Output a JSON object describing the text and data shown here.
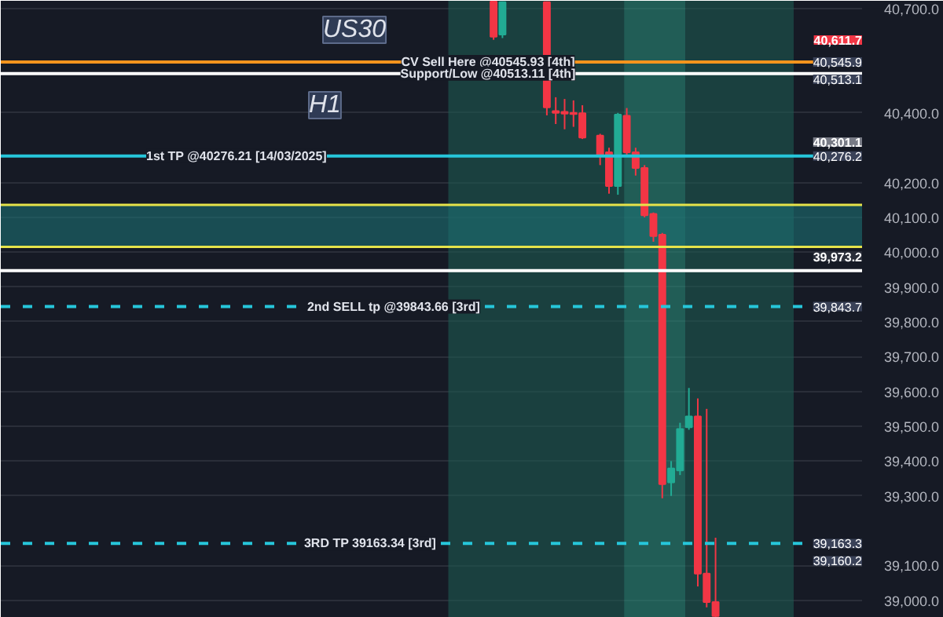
{
  "chart_data": {
    "type": "candlestick",
    "categories": [
      null,
      null,
      null,
      null,
      null,
      null,
      null,
      null,
      null,
      null,
      null,
      null,
      null,
      null,
      null,
      null,
      null,
      null,
      null,
      null,
      null,
      null,
      null,
      null,
      null,
      null,
      null,
      null,
      null,
      null,
      null,
      null,
      null,
      null,
      null,
      null,
      null,
      null,
      null,
      null,
      null,
      null,
      null,
      null,
      null,
      null,
      null,
      null,
      null,
      null,
      null,
      null,
      null,
      null,
      null,
      null,
      null,
      null,
      null,
      null,
      null,
      null,
      null,
      null,
      null,
      null,
      null,
      null,
      null,
      null,
      null,
      null,
      null,
      null,
      null,
      null,
      null,
      null,
      null,
      null,
      null,
      null,
      null,
      null,
      null,
      null,
      null,
      null,
      null,
      null,
      null,
      null,
      null,
      null,
      null,
      null,
      null
    ],
    "ohlc": [
      null,
      null,
      null,
      null,
      null,
      null,
      null,
      null,
      null,
      null,
      null,
      null,
      null,
      null,
      null,
      null,
      null,
      null,
      null,
      null,
      null,
      null,
      null,
      null,
      null,
      null,
      null,
      null,
      null,
      null,
      null,
      null,
      null,
      null,
      null,
      null,
      null,
      null,
      null,
      null,
      null,
      null,
      null,
      null,
      null,
      null,
      null,
      null,
      null,
      null,
      null,
      null,
      null,
      null,
      null,
      [
        40720,
        40722,
        40610,
        40619
      ],
      [
        40625,
        40720,
        40615,
        40718
      ],
      null,
      null,
      null,
      null,
      [
        40718,
        40720,
        40393,
        40416
      ],
      [
        40405,
        40445,
        40368,
        40400
      ],
      [
        40403,
        40440,
        40353,
        40398
      ],
      [
        40400,
        40436,
        40360,
        40397
      ],
      [
        40399,
        40422,
        40325,
        40329
      ],
      null,
      [
        40335,
        40340,
        40250,
        40276
      ],
      [
        40287,
        40300,
        40168,
        40190
      ],
      [
        40190,
        40400,
        40165,
        40395
      ],
      [
        40392,
        40414,
        40280,
        40287
      ],
      [
        40287,
        40300,
        40220,
        40242
      ],
      [
        40242,
        40250,
        40100,
        40106
      ],
      [
        40110,
        40114,
        40030,
        40046
      ],
      [
        40050,
        40055,
        39293,
        39334
      ],
      [
        39339,
        39400,
        39300,
        39379
      ],
      [
        39373,
        39510,
        39360,
        39492
      ],
      [
        39497,
        39610,
        39490,
        39528
      ],
      [
        39528,
        39580,
        39040,
        39077
      ],
      [
        39077,
        39550,
        38980,
        38995
      ],
      [
        38995,
        39180,
        38952,
        38955
      ],
      null,
      null,
      null,
      null,
      null,
      null,
      null,
      null,
      null,
      null,
      null,
      null,
      null,
      null,
      null,
      null
    ],
    "ylim": [
      38950,
      40722
    ],
    "yticks": [
      {
        "value": 39000,
        "label": "39,000.0"
      },
      {
        "value": 39100,
        "label": "39,100.0"
      },
      {
        "value": 39300,
        "label": "39,300.0"
      },
      {
        "value": 39400,
        "label": "39,400.0"
      },
      {
        "value": 39500,
        "label": "39,500.0"
      },
      {
        "value": 39600,
        "label": "39,600.0"
      },
      {
        "value": 39700,
        "label": "39,700.0"
      },
      {
        "value": 39800,
        "label": "39,800.0"
      },
      {
        "value": 39900,
        "label": "39,900.0"
      },
      {
        "value": 40000,
        "label": "40,000.0"
      },
      {
        "value": 40100,
        "label": "40,100.0"
      },
      {
        "value": 40200,
        "label": "40,200.0"
      },
      {
        "value": 40400,
        "label": "40,400.0"
      },
      {
        "value": 40700,
        "label": "40,700.0"
      }
    ],
    "grid": "y",
    "ref_lines": [
      {
        "axis": "y",
        "value": 40545.93,
        "label": "CV Sell Here @40545.93 [4th]",
        "color": "#f7941d",
        "line_style": "solid"
      },
      {
        "axis": "y",
        "value": 40513.11,
        "label": "Support/Low @40513.11 [4th]",
        "color": "#ffffff",
        "line_style": "solid"
      },
      {
        "axis": "y",
        "value": 40276.21,
        "label": "1st TP @40276.21 [14/03/2025]",
        "color": "#26c6da",
        "line_style": "solid"
      },
      {
        "axis": "y",
        "value": 40136,
        "label": null,
        "color": "#e6e34a",
        "line_style": "solid"
      },
      {
        "axis": "y",
        "value": 40015,
        "label": null,
        "color": "#e6e34a",
        "line_style": "solid"
      },
      {
        "axis": "y",
        "value": 39947,
        "label": null,
        "color": "#ffffff",
        "line_style": "solid"
      },
      {
        "axis": "y",
        "value": 39843.66,
        "label": "2nd SELL tp @39843.66 [3rd]",
        "color": "#26c6da",
        "line_style": "dashed"
      },
      {
        "axis": "y",
        "value": 39163.34,
        "label": "3RD TP 39163.34 [3rd]",
        "color": "#26c6da",
        "line_style": "dashed"
      }
    ],
    "bands": [
      {
        "axis": "y",
        "from": 40015,
        "to": 40136,
        "label": null,
        "color": "#1c6f73"
      }
    ],
    "annotations": [
      "US30",
      "H1",
      "40,611.7",
      {
        "text": "40,545.9",
        "y": 40545.9
      },
      {
        "text": "40,513.1",
        "y": 40513.1
      },
      "40,301.1",
      {
        "text": "40,276.2",
        "y": 40276.2
      },
      "39,973.2",
      {
        "text": "39,843.7",
        "y": 39843.7
      },
      {
        "text": "39,163.3",
        "y": 39163.3
      },
      {
        "text": "39,160.2",
        "y": 39160.2
      }
    ]
  }
}
